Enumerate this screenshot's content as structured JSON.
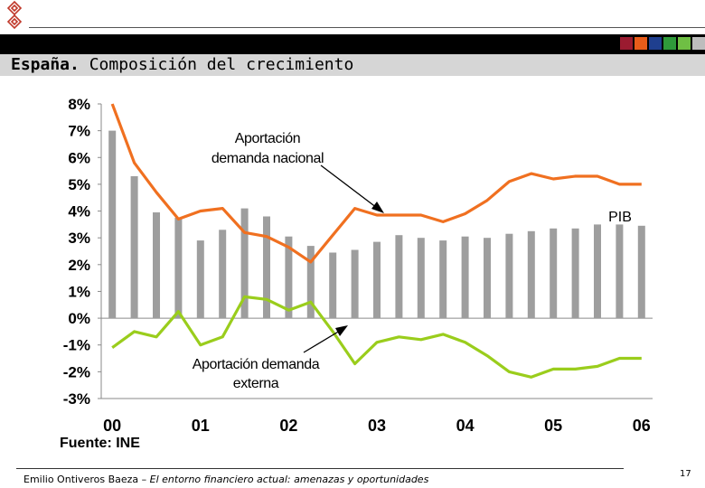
{
  "header": {
    "title_bold": "España.",
    "title_rest": " Composición del crecimiento",
    "swatch_colors": [
      "#9b1b30",
      "#e85c1a",
      "#1f3f8f",
      "#2f9a3a",
      "#6fbf44",
      "#bdbdbd"
    ]
  },
  "footer": {
    "author": "Emilio Ontiveros Baeza – ",
    "subtitle": "El entorno financiero actual: amenazas y oportunidades",
    "page": "17"
  },
  "chart_data": {
    "type": "bar+line",
    "source": "Fuente: INE",
    "ylim": [
      -3,
      8
    ],
    "yticks": [
      8,
      7,
      6,
      5,
      4,
      3,
      2,
      1,
      0,
      -1,
      -2,
      -3
    ],
    "ytick_labels": [
      "8%",
      "7%",
      "6%",
      "5%",
      "4%",
      "3%",
      "2%",
      "1%",
      "0%",
      "-1%",
      "-2%",
      "-3%"
    ],
    "xtick_labels": [
      "00",
      "01",
      "02",
      "03",
      "04",
      "05",
      "06"
    ],
    "series": [
      {
        "name": "PIB",
        "type": "bar",
        "color": "#9e9e9e",
        "values": [
          7.0,
          5.3,
          3.95,
          3.75,
          2.9,
          3.3,
          4.1,
          3.8,
          3.05,
          2.7,
          2.45,
          2.55,
          2.85,
          3.1,
          3.0,
          2.9,
          3.05,
          3.0,
          3.15,
          3.25,
          3.35,
          3.35,
          3.5,
          3.5,
          3.45
        ]
      },
      {
        "name": "Aportación demanda nacional",
        "type": "line",
        "color": "#f07020",
        "values": [
          8.0,
          5.8,
          4.7,
          3.7,
          4.0,
          4.1,
          3.2,
          3.05,
          2.65,
          2.1,
          3.1,
          4.1,
          3.85,
          3.85,
          3.85,
          3.6,
          3.9,
          4.4,
          5.1,
          5.4,
          5.2,
          5.3,
          5.3,
          5.0,
          5.0
        ]
      },
      {
        "name": "Aportación demanda externa",
        "type": "line",
        "color": "#9acd1c",
        "values": [
          -1.1,
          -0.5,
          -0.7,
          0.25,
          -1.0,
          -0.7,
          0.8,
          0.7,
          0.3,
          0.6,
          -0.5,
          -1.7,
          -0.9,
          -0.7,
          -0.8,
          -0.6,
          -0.9,
          -1.4,
          -2.0,
          -2.2,
          -1.9,
          -1.9,
          -1.8,
          -1.5,
          -1.5
        ]
      }
    ],
    "annotations": {
      "nacional_line1": "Aportación",
      "nacional_line2": "demanda nacional",
      "externa_line1": "Aportación demanda",
      "externa_line2": "externa",
      "pib": "PIB"
    }
  }
}
